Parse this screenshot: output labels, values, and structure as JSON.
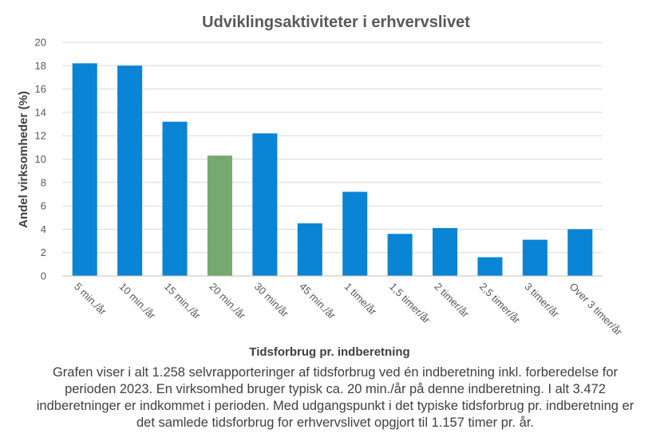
{
  "chart_data": {
    "type": "bar",
    "title": "Udviklingsaktiviteter  i erhvervslivet",
    "xlabel": "Tidsforbrug pr. indberetning",
    "ylabel": "Andel virksomheder  (%)",
    "ylim": [
      0,
      20
    ],
    "yticks": [
      0,
      2,
      4,
      6,
      8,
      10,
      12,
      14,
      16,
      18,
      20
    ],
    "grid": true,
    "legend": "none",
    "categories": [
      "5 min./år",
      "10 min./år",
      "15 min./år",
      "20 min./år",
      "30 min/år",
      "45 min./år",
      "1 time/år",
      "1,5 timer/år",
      "2 timer/år",
      "2,5 timer/år",
      "3 timer/år",
      "Over 3 timer/år"
    ],
    "values": [
      18.2,
      18.0,
      13.2,
      10.3,
      12.2,
      4.5,
      7.2,
      3.6,
      4.1,
      1.6,
      3.1,
      4.0
    ],
    "highlight_index": 3,
    "colors": {
      "bar": "#0a84d4",
      "highlight": "#76a96f",
      "grid": "#d9d9d9",
      "axis": "#bfbfbf"
    }
  },
  "caption": "Grafen viser i alt 1.258 selvrapporteringer af tidsforbrug ved én indberetning inkl. forberedelse for perioden 2023. En virksomhed bruger typisk ca. 20 min./år på denne indberetning. I alt 3.472 indberetninger er indkommet i perioden. Med udgangspunkt i det typiske tidsforbrug pr. indberetning er det samlede tidsforbrug for erhvervslivet opgjort til 1.157 timer pr. år."
}
